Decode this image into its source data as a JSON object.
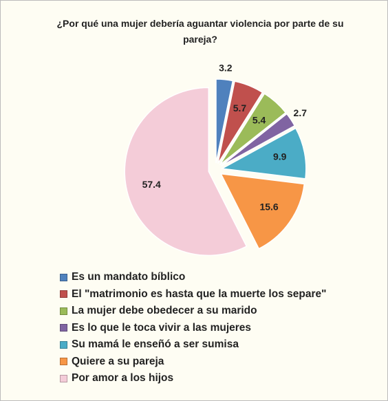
{
  "chart_data": {
    "type": "pie",
    "title": "¿Por qué una mujer debería aguantar violencia por parte de su pareja?",
    "categories": [
      "Es un mandato bíblico",
      "El \"matrimonio es hasta que la muerte los separe\"",
      "La mujer debe obedecer a su marido",
      "Es lo que le toca vivir a las mujeres",
      "Su mamá le enseñó a ser sumisa",
      "Quiere a su pareja",
      "Por amor a los hijos"
    ],
    "values": [
      3.2,
      5.7,
      5.4,
      2.7,
      9.9,
      15.6,
      57.4
    ],
    "colors": [
      "#4f81bd",
      "#c0504d",
      "#9bbb59",
      "#8064a2",
      "#4bacc6",
      "#f79646",
      "#f4ccd8"
    ],
    "legend": "bottom"
  }
}
